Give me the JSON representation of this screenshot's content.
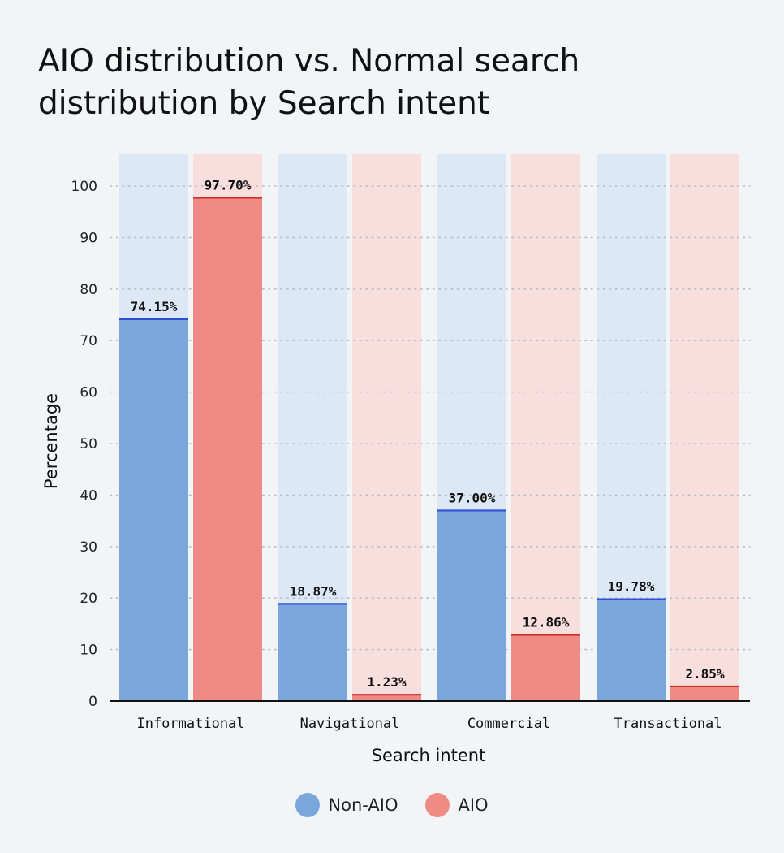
{
  "chart_data": {
    "type": "bar",
    "title": "AIO distribution vs. Normal search distribution by Search intent",
    "xlabel": "Search intent",
    "ylabel": "Percentage",
    "categories": [
      "Informational",
      "Navigational",
      "Commercial",
      "Transactional"
    ],
    "series": [
      {
        "name": "Non-AIO",
        "values": [
          74.15,
          18.87,
          37.0,
          19.78
        ],
        "labels": [
          "74.15%",
          "18.87%",
          "37.00%",
          "19.78%"
        ],
        "color": "#7aa7db",
        "line_color": "#2f4fd6",
        "track_color": "#dce8f5"
      },
      {
        "name": "AIO",
        "values": [
          97.7,
          1.23,
          12.86,
          2.85
        ],
        "labels": [
          "97.70%",
          "1.23%",
          "12.86%",
          "2.85%"
        ],
        "color": "#ef8a85",
        "line_color": "#d0302b",
        "track_color": "#f9dede"
      }
    ],
    "yticks": [
      0,
      10,
      20,
      30,
      40,
      50,
      60,
      70,
      80,
      90,
      100
    ],
    "ylim": [
      0,
      100
    ],
    "grid": true,
    "legend_position": "bottom"
  }
}
